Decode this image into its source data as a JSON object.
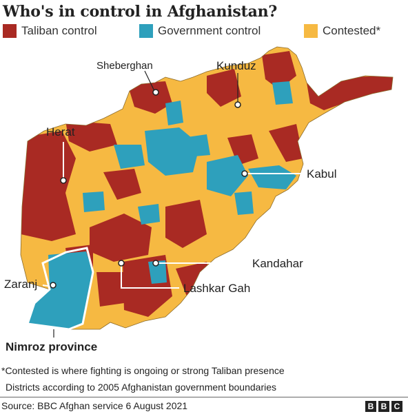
{
  "title": "Who's in control in Afghanistan?",
  "colors": {
    "taliban": "#a92a23",
    "government": "#2ea0bc",
    "contested": "#f6b942",
    "background": "#ffffff"
  },
  "legend": [
    {
      "label": "Taliban control",
      "color": "#a92a23"
    },
    {
      "label": "Government control",
      "color": "#2ea0bc"
    },
    {
      "label": "Contested*",
      "color": "#f6b942"
    }
  ],
  "map": {
    "places": [
      {
        "name": "Sheberghan"
      },
      {
        "name": "Kunduz"
      },
      {
        "name": "Herat"
      },
      {
        "name": "Kabul"
      },
      {
        "name": "Kandahar"
      },
      {
        "name": "Zaranj"
      },
      {
        "name": "Lashkar Gah"
      },
      {
        "name": "Nimroz province"
      }
    ]
  },
  "notes": {
    "contested": "*Contested is where fighting is ongoing or strong Taliban presence",
    "districts": "Districts according to 2005 Afghanistan government boundaries"
  },
  "footer": {
    "source": "Source: BBC Afghan service 6 August 2021",
    "logo": [
      "B",
      "B",
      "C"
    ]
  }
}
